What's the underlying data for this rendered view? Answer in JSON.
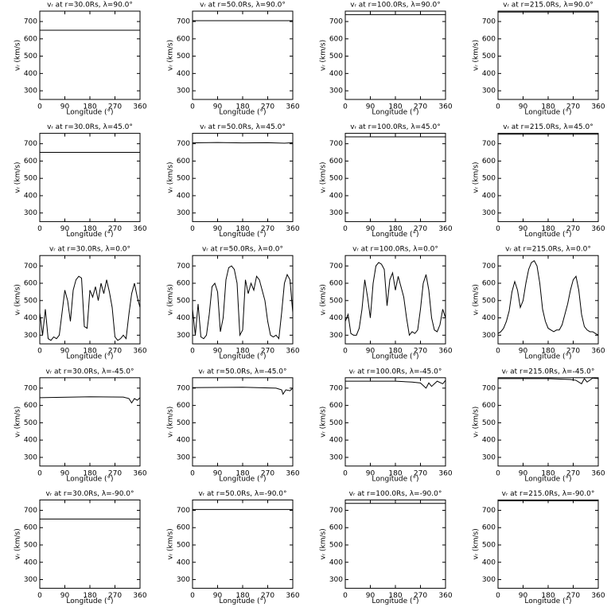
{
  "chart_data": [
    {
      "type": "line",
      "title": "vᵣ at r=30.0Rs, λ=90.0°",
      "xlabel": "Longitude (°)",
      "ylabel": "vᵣ (km/s)",
      "xlim": [
        0,
        360
      ],
      "ylim": [
        250,
        760
      ],
      "xticks": [
        0,
        90,
        180,
        270,
        360
      ],
      "yticks": [
        300,
        400,
        500,
        600,
        700
      ],
      "color": "#000000",
      "x": [
        0,
        360
      ],
      "values": [
        650,
        650
      ]
    },
    {
      "type": "line",
      "title": "vᵣ at r=50.0Rs, λ=90.0°",
      "xlabel": "Longitude (°)",
      "ylabel": "vᵣ (km/s)",
      "xlim": [
        0,
        360
      ],
      "ylim": [
        250,
        760
      ],
      "xticks": [
        0,
        90,
        180,
        270,
        360
      ],
      "yticks": [
        300,
        400,
        500,
        600,
        700
      ],
      "color": "#000000",
      "x": [
        0,
        360
      ],
      "values": [
        705,
        705
      ]
    },
    {
      "type": "line",
      "title": "vᵣ at r=100.0Rs, λ=90.0°",
      "xlabel": "Longitude (°)",
      "ylabel": "vᵣ (km/s)",
      "xlim": [
        0,
        360
      ],
      "ylim": [
        250,
        760
      ],
      "xticks": [
        0,
        90,
        180,
        270,
        360
      ],
      "yticks": [
        300,
        400,
        500,
        600,
        700
      ],
      "color": "#000000",
      "x": [
        0,
        360
      ],
      "values": [
        740,
        740
      ]
    },
    {
      "type": "line",
      "title": "vᵣ at r=215.0Rs, λ=90.0°",
      "xlabel": "Longitude (°)",
      "ylabel": "vᵣ (km/s)",
      "xlim": [
        0,
        360
      ],
      "ylim": [
        250,
        760
      ],
      "xticks": [
        0,
        90,
        180,
        270,
        360
      ],
      "yticks": [
        300,
        400,
        500,
        600,
        700
      ],
      "color": "#000000",
      "x": [
        0,
        360
      ],
      "values": [
        755,
        755
      ]
    },
    {
      "type": "line",
      "title": "vᵣ at r=30.0Rs, λ=45.0°",
      "xlabel": "Longitude (°)",
      "ylabel": "vᵣ (km/s)",
      "xlim": [
        0,
        360
      ],
      "ylim": [
        250,
        760
      ],
      "xticks": [
        0,
        90,
        180,
        270,
        360
      ],
      "yticks": [
        300,
        400,
        500,
        600,
        700
      ],
      "color": "#000000",
      "x": [
        0,
        360
      ],
      "values": [
        650,
        650
      ]
    },
    {
      "type": "line",
      "title": "vᵣ at r=50.0Rs, λ=45.0°",
      "xlabel": "Longitude (°)",
      "ylabel": "vᵣ (km/s)",
      "xlim": [
        0,
        360
      ],
      "ylim": [
        250,
        760
      ],
      "xticks": [
        0,
        90,
        180,
        270,
        360
      ],
      "yticks": [
        300,
        400,
        500,
        600,
        700
      ],
      "color": "#000000",
      "x": [
        0,
        90,
        180,
        270,
        330,
        360
      ],
      "values": [
        705,
        707,
        705,
        706,
        703,
        706
      ]
    },
    {
      "type": "line",
      "title": "vᵣ at r=100.0Rs, λ=45.0°",
      "xlabel": "Longitude (°)",
      "ylabel": "vᵣ (km/s)",
      "xlim": [
        0,
        360
      ],
      "ylim": [
        250,
        760
      ],
      "xticks": [
        0,
        90,
        180,
        270,
        360
      ],
      "yticks": [
        300,
        400,
        500,
        600,
        700
      ],
      "color": "#000000",
      "x": [
        0,
        360
      ],
      "values": [
        740,
        740
      ]
    },
    {
      "type": "line",
      "title": "vᵣ at r=215.0Rs, λ=45.0°",
      "xlabel": "Longitude (°)",
      "ylabel": "vᵣ (km/s)",
      "xlim": [
        0,
        360
      ],
      "ylim": [
        250,
        760
      ],
      "xticks": [
        0,
        90,
        180,
        270,
        360
      ],
      "yticks": [
        300,
        400,
        500,
        600,
        700
      ],
      "color": "#000000",
      "x": [
        0,
        360
      ],
      "values": [
        755,
        755
      ]
    },
    {
      "type": "line",
      "title": "vᵣ at r=30.0Rs, λ=0.0°",
      "xlabel": "Longitude (°)",
      "ylabel": "vᵣ (km/s)",
      "xlim": [
        0,
        360
      ],
      "ylim": [
        250,
        760
      ],
      "xticks": [
        0,
        90,
        180,
        270,
        360
      ],
      "yticks": [
        300,
        400,
        500,
        600,
        700
      ],
      "color": "#000000",
      "x": [
        0,
        10,
        20,
        30,
        40,
        50,
        60,
        70,
        80,
        90,
        100,
        110,
        120,
        130,
        140,
        150,
        160,
        170,
        180,
        190,
        200,
        210,
        220,
        230,
        240,
        250,
        260,
        270,
        280,
        290,
        300,
        310,
        320,
        330,
        340,
        350,
        360
      ],
      "values": [
        430,
        300,
        450,
        280,
        270,
        290,
        280,
        300,
        430,
        560,
        500,
        380,
        560,
        620,
        640,
        630,
        350,
        340,
        560,
        520,
        580,
        500,
        600,
        540,
        620,
        550,
        460,
        290,
        270,
        280,
        300,
        280,
        420,
        540,
        600,
        520,
        460
      ]
    },
    {
      "type": "line",
      "title": "vᵣ at r=50.0Rs, λ=0.0°",
      "xlabel": "Longitude (°)",
      "ylabel": "vᵣ (km/s)",
      "xlim": [
        0,
        360
      ],
      "ylim": [
        250,
        760
      ],
      "xticks": [
        0,
        90,
        180,
        270,
        360
      ],
      "yticks": [
        300,
        400,
        500,
        600,
        700
      ],
      "color": "#000000",
      "x": [
        0,
        10,
        20,
        30,
        40,
        50,
        60,
        70,
        80,
        90,
        100,
        110,
        120,
        130,
        140,
        150,
        160,
        170,
        180,
        190,
        200,
        210,
        220,
        230,
        240,
        250,
        260,
        270,
        280,
        290,
        300,
        310,
        320,
        330,
        340,
        350,
        360
      ],
      "values": [
        450,
        300,
        480,
        290,
        280,
        300,
        420,
        580,
        600,
        550,
        320,
        400,
        620,
        690,
        700,
        680,
        600,
        300,
        330,
        620,
        540,
        600,
        560,
        640,
        620,
        560,
        500,
        380,
        300,
        290,
        300,
        280,
        430,
        600,
        650,
        620,
        430
      ]
    },
    {
      "type": "line",
      "title": "vᵣ at r=100.0Rs, λ=0.0°",
      "xlabel": "Longitude (°)",
      "ylabel": "vᵣ (km/s)",
      "xlim": [
        0,
        360
      ],
      "ylim": [
        250,
        760
      ],
      "xticks": [
        0,
        90,
        180,
        270,
        360
      ],
      "yticks": [
        300,
        400,
        500,
        600,
        700
      ],
      "color": "#000000",
      "x": [
        0,
        10,
        20,
        30,
        40,
        50,
        60,
        70,
        80,
        90,
        100,
        110,
        120,
        130,
        140,
        150,
        160,
        170,
        180,
        190,
        200,
        210,
        220,
        230,
        240,
        250,
        260,
        270,
        280,
        290,
        300,
        310,
        320,
        330,
        340,
        350,
        360
      ],
      "values": [
        380,
        420,
        310,
        300,
        300,
        340,
        450,
        620,
        520,
        400,
        600,
        700,
        720,
        710,
        680,
        470,
        620,
        660,
        560,
        640,
        580,
        520,
        400,
        300,
        320,
        310,
        330,
        450,
        600,
        650,
        560,
        400,
        330,
        320,
        360,
        450,
        400
      ]
    },
    {
      "type": "line",
      "title": "vᵣ at r=215.0Rs, λ=0.0°",
      "xlabel": "Longitude (°)",
      "ylabel": "vᵣ (km/s)",
      "xlim": [
        0,
        360
      ],
      "ylim": [
        250,
        760
      ],
      "xticks": [
        0,
        90,
        180,
        270,
        360
      ],
      "yticks": [
        300,
        400,
        500,
        600,
        700
      ],
      "color": "#000000",
      "x": [
        0,
        10,
        20,
        30,
        40,
        50,
        60,
        70,
        80,
        90,
        100,
        110,
        120,
        130,
        140,
        150,
        160,
        170,
        180,
        190,
        200,
        210,
        220,
        230,
        240,
        250,
        260,
        270,
        280,
        290,
        300,
        310,
        320,
        330,
        340,
        350,
        360
      ],
      "values": [
        310,
        320,
        340,
        380,
        440,
        550,
        610,
        560,
        460,
        500,
        600,
        680,
        720,
        730,
        700,
        600,
        450,
        380,
        340,
        330,
        320,
        330,
        330,
        360,
        420,
        480,
        560,
        620,
        640,
        560,
        420,
        350,
        330,
        320,
        320,
        310,
        300
      ]
    },
    {
      "type": "line",
      "title": "vᵣ at r=30.0Rs, λ=-45.0°",
      "xlabel": "Longitude (°)",
      "ylabel": "vᵣ (km/s)",
      "xlim": [
        0,
        360
      ],
      "ylim": [
        250,
        760
      ],
      "xticks": [
        0,
        90,
        180,
        270,
        360
      ],
      "yticks": [
        300,
        400,
        500,
        600,
        700
      ],
      "color": "#000000",
      "x": [
        0,
        180,
        300,
        320,
        330,
        340,
        350,
        360
      ],
      "values": [
        645,
        650,
        648,
        640,
        615,
        640,
        630,
        645
      ]
    },
    {
      "type": "line",
      "title": "vᵣ at r=50.0Rs, λ=-45.0°",
      "xlabel": "Longitude (°)",
      "ylabel": "vᵣ (km/s)",
      "xlim": [
        0,
        360
      ],
      "ylim": [
        250,
        760
      ],
      "xticks": [
        0,
        90,
        180,
        270,
        360
      ],
      "yticks": [
        300,
        400,
        500,
        600,
        700
      ],
      "color": "#000000",
      "x": [
        0,
        180,
        300,
        320,
        325,
        335,
        350,
        360
      ],
      "values": [
        703,
        705,
        700,
        690,
        665,
        690,
        685,
        700
      ]
    },
    {
      "type": "line",
      "title": "vᵣ at r=100.0Rs, λ=-45.0°",
      "xlabel": "Longitude (°)",
      "ylabel": "vᵣ (km/s)",
      "xlim": [
        0,
        360
      ],
      "ylim": [
        250,
        760
      ],
      "xticks": [
        0,
        90,
        180,
        270,
        360
      ],
      "yticks": [
        300,
        400,
        500,
        600,
        700
      ],
      "color": "#000000",
      "x": [
        0,
        180,
        240,
        270,
        290,
        300,
        310,
        330,
        350,
        360
      ],
      "values": [
        740,
        740,
        735,
        730,
        700,
        730,
        710,
        740,
        725,
        745
      ]
    },
    {
      "type": "line",
      "title": "vᵣ at r=215.0Rs, λ=-45.0°",
      "xlabel": "Longitude (°)",
      "ylabel": "vᵣ (km/s)",
      "xlim": [
        0,
        360
      ],
      "ylim": [
        250,
        760
      ],
      "xticks": [
        0,
        90,
        180,
        270,
        360
      ],
      "yticks": [
        300,
        400,
        500,
        600,
        700
      ],
      "color": "#000000",
      "x": [
        0,
        180,
        260,
        280,
        300,
        310,
        320,
        340,
        360
      ],
      "values": [
        755,
        755,
        750,
        745,
        725,
        755,
        735,
        758,
        755
      ]
    },
    {
      "type": "line",
      "title": "vᵣ at r=30.0Rs, λ=-90.0°",
      "xlabel": "Longitude (°)",
      "ylabel": "vᵣ (km/s)",
      "xlim": [
        0,
        360
      ],
      "ylim": [
        250,
        760
      ],
      "xticks": [
        0,
        90,
        180,
        270,
        360
      ],
      "yticks": [
        300,
        400,
        500,
        600,
        700
      ],
      "color": "#000000",
      "x": [
        0,
        360
      ],
      "values": [
        650,
        650
      ]
    },
    {
      "type": "line",
      "title": "vᵣ at r=50.0Rs, λ=-90.0°",
      "xlabel": "Longitude (°)",
      "ylabel": "vᵣ (km/s)",
      "xlim": [
        0,
        360
      ],
      "ylim": [
        250,
        760
      ],
      "xticks": [
        0,
        90,
        180,
        270,
        360
      ],
      "yticks": [
        300,
        400,
        500,
        600,
        700
      ],
      "color": "#000000",
      "x": [
        0,
        360
      ],
      "values": [
        705,
        705
      ]
    },
    {
      "type": "line",
      "title": "vᵣ at r=100.0Rs, λ=-90.0°",
      "xlabel": "Longitude (°)",
      "ylabel": "vᵣ (km/s)",
      "xlim": [
        0,
        360
      ],
      "ylim": [
        250,
        760
      ],
      "xticks": [
        0,
        90,
        180,
        270,
        360
      ],
      "yticks": [
        300,
        400,
        500,
        600,
        700
      ],
      "color": "#000000",
      "x": [
        0,
        360
      ],
      "values": [
        740,
        740
      ]
    },
    {
      "type": "line",
      "title": "vᵣ at r=215.0Rs, λ=-90.0°",
      "xlabel": "Longitude (°)",
      "ylabel": "vᵣ (km/s)",
      "xlim": [
        0,
        360
      ],
      "ylim": [
        250,
        760
      ],
      "xticks": [
        0,
        90,
        180,
        270,
        360
      ],
      "yticks": [
        300,
        400,
        500,
        600,
        700
      ],
      "color": "#000000",
      "x": [
        0,
        360
      ],
      "values": [
        755,
        755
      ]
    }
  ]
}
